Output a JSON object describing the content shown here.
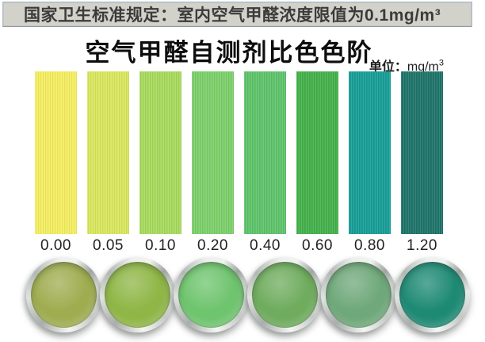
{
  "banner": {
    "text": "国家卫生标准规定：室内空气甲醛浓度限值为0.1mg/m³"
  },
  "title": "空气甲醛自测剂比色色阶",
  "unit": {
    "label": "单位：",
    "value": "mg/m",
    "sup": "3"
  },
  "chart_data": {
    "type": "heatmap",
    "title": "空气甲醛自测剂比色色阶",
    "subtitle": "国家卫生标准规定：室内空气甲醛浓度限值为0.1mg/m³",
    "unit": "mg/m³",
    "categories": [
      "0.00",
      "0.05",
      "0.10",
      "0.20",
      "0.40",
      "0.60",
      "0.80",
      "1.20"
    ],
    "colors": [
      "#f4ee62",
      "#d9e75f",
      "#a8da5e",
      "#7dd06b",
      "#5fc46b",
      "#45b14c",
      "#189e97",
      "#20756b"
    ],
    "sample_cup_colors": [
      "#9fad50",
      "#8fb646",
      "#6fc46e",
      "#6fac5e",
      "#6fa87a",
      "#1e8a74"
    ],
    "layout": "8 vertical colour strips labelled with formaldehyde concentration values; 6 photographed test cups with reacted liquid below"
  }
}
